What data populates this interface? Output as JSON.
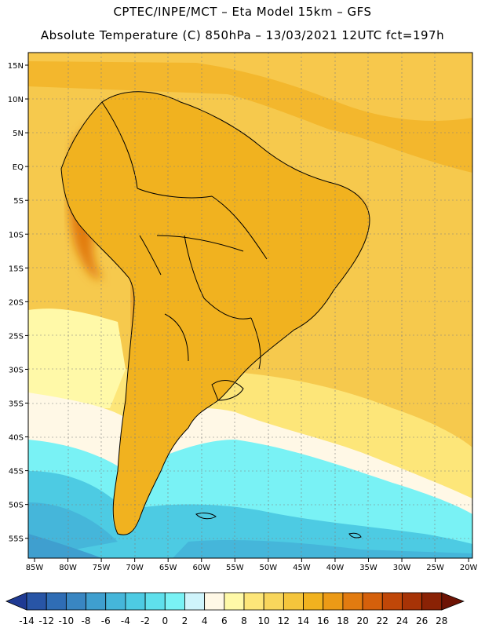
{
  "header": {
    "line1": "CPTEC/INPE/MCT –  Eta Model 15km – GFS",
    "line2": "Absolute Temperature (C) 850hPa – 13/03/2021 12UTC fct=197h"
  },
  "axes": {
    "lat_labels": [
      "15N",
      "10N",
      "5N",
      "EQ",
      "5S",
      "10S",
      "15S",
      "20S",
      "25S",
      "30S",
      "35S",
      "40S",
      "45S",
      "50S",
      "55S"
    ],
    "lon_labels": [
      "85W",
      "80W",
      "75W",
      "70W",
      "65W",
      "60W",
      "55W",
      "50W",
      "45W",
      "40W",
      "35W",
      "30W",
      "25W",
      "20W"
    ]
  },
  "colorbar": {
    "ticks": [
      "-14",
      "-12",
      "-10",
      "-8",
      "-6",
      "-4",
      "-2",
      "0",
      "2",
      "4",
      "6",
      "8",
      "10",
      "12",
      "14",
      "16",
      "18",
      "20",
      "22",
      "24",
      "26",
      "28"
    ],
    "colors": [
      "#1f3a93",
      "#2855a6",
      "#2f6db5",
      "#3986c2",
      "#3f9fcf",
      "#45b6da",
      "#4dcbe3",
      "#5fe0ec",
      "#79f2f5",
      "#cff4fb",
      "#fff8e6",
      "#fff9a8",
      "#fde679",
      "#f8d65c",
      "#f5c53c",
      "#f1b21f",
      "#ec9a16",
      "#e27b10",
      "#d5600b",
      "#c04708",
      "#a73306",
      "#8a2205",
      "#6d1304"
    ]
  }
}
